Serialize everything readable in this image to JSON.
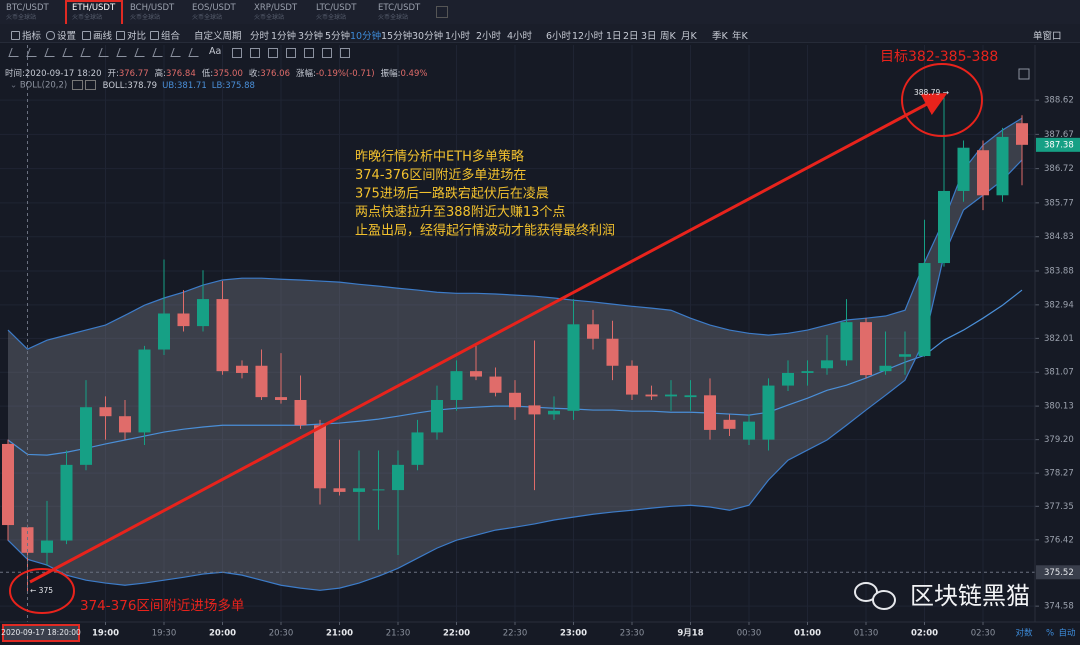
{
  "tabs": [
    {
      "pair": "BTC/USDT",
      "exchange": "火币全球站"
    },
    {
      "pair": "ETH/USDT",
      "exchange": "火币全球站"
    },
    {
      "pair": "BCH/USDT",
      "exchange": "火币全球站"
    },
    {
      "pair": "EOS/USDT",
      "exchange": "火币全球站"
    },
    {
      "pair": "XRP/USDT",
      "exchange": "火币全球站"
    },
    {
      "pair": "LTC/USDT",
      "exchange": "火币全球站"
    },
    {
      "pair": "ETC/USDT",
      "exchange": "火币全球站"
    }
  ],
  "toolbar": {
    "left": [
      "指标",
      "设置",
      "画线",
      "对比",
      "组合"
    ],
    "custom": "自定义周期",
    "periods": [
      "分时",
      "1分钟",
      "3分钟",
      "5分钟",
      "10分钟",
      "15分钟",
      "30分钟",
      "1小时",
      "2小时",
      "4小时",
      "6小时",
      "12小时",
      "1日",
      "2日",
      "3日",
      "周K",
      "月K",
      "季K",
      "年K"
    ],
    "window": "单窗口"
  },
  "draw_tools_text": "Aa",
  "info": [
    {
      "label": "时间:",
      "value": "2020-09-17 18:20"
    },
    {
      "label": "开:",
      "value": "376.77"
    },
    {
      "label": "高:",
      "value": "376.84"
    },
    {
      "label": "低:",
      "value": "375.00"
    },
    {
      "label": "收:",
      "value": "376.06"
    },
    {
      "label": "涨幅:",
      "value": "-0.19%(-0.71)"
    },
    {
      "label": "振幅:",
      "value": "0.49%"
    }
  ],
  "indicator": {
    "title": "BOLL(20,2)",
    "readout": [
      "BOLL:378.79",
      "UB:381.71",
      "LB:375.88"
    ]
  },
  "annotations": {
    "target": "目标382-385-388",
    "high_marker": "388.79 →",
    "low_marker": "← 375",
    "entry_note": "374-376区间附近进场多单",
    "commentary": [
      "昨晚行情分析中ETH多单策略",
      "374-376区间附近多单进场在",
      "375进场后一路跌宕起伏后在凌晨",
      "两点快速拉升至388附近大赚13个点",
      "止盈出局，经得起行情波动才能获得最终利润"
    ]
  },
  "watermark": "区块链黑猫",
  "axis_footer": [
    "对数",
    "%",
    "自动"
  ],
  "chart_data": {
    "type": "candlestick",
    "grid": true,
    "categories": [
      null,
      null,
      null,
      null,
      null,
      "19:00",
      null,
      null,
      "19:30",
      null,
      null,
      "20:00",
      null,
      null,
      "20:30",
      null,
      null,
      "21:00",
      null,
      null,
      "21:30",
      null,
      null,
      "22:00",
      null,
      null,
      "22:30",
      null,
      null,
      "23:00",
      null,
      null,
      "23:30",
      null,
      null,
      "9月18",
      null,
      null,
      "00:30",
      null,
      null,
      "01:00",
      null,
      null,
      "01:30",
      null,
      null,
      "02:00",
      null,
      null,
      "02:30",
      null,
      null
    ],
    "open": [
      379.08,
      376.77,
      376.06,
      376.4,
      378.5,
      380.1,
      379.85,
      379.4,
      381.7,
      382.7,
      382.35,
      383.1,
      381.25,
      381.25,
      380.38,
      380.3,
      379.6,
      377.85,
      377.75,
      377.8,
      377.8,
      378.5,
      379.4,
      380.3,
      381.1,
      380.95,
      380.5,
      380.15,
      379.9,
      380.0,
      382.4,
      382.0,
      381.25,
      380.45,
      380.4,
      380.38,
      380.43,
      379.75,
      379.2,
      379.2,
      380.7,
      381.05,
      381.18,
      381.4,
      382.46,
      381.1,
      381.5,
      381.52,
      384.1,
      386.1,
      387.23,
      385.98,
      387.98
    ],
    "high": [
      379.2,
      376.84,
      377.5,
      378.9,
      380.85,
      380.4,
      380.3,
      381.8,
      384.2,
      383.35,
      383.9,
      383.6,
      381.4,
      381.7,
      381.6,
      380.98,
      379.75,
      379.2,
      378.9,
      378.9,
      378.9,
      379.75,
      380.7,
      381.4,
      381.8,
      381.2,
      380.85,
      381.95,
      380.4,
      383.1,
      382.8,
      382.5,
      381.4,
      380.7,
      380.85,
      380.85,
      380.9,
      379.9,
      379.9,
      380.9,
      381.4,
      381.4,
      382.1,
      383.1,
      382.57,
      382.2,
      382.2,
      385.3,
      388.79,
      387.5,
      387.5,
      387.85,
      388.2
    ],
    "low": [
      376.4,
      375.0,
      375.7,
      376.3,
      378.35,
      379.2,
      379.2,
      379.05,
      381.55,
      382.2,
      382.2,
      381.0,
      380.9,
      380.3,
      380.2,
      379.5,
      377.4,
      377.65,
      376.4,
      376.7,
      376.0,
      378.35,
      379.2,
      380.0,
      380.85,
      380.4,
      379.75,
      377.8,
      379.75,
      379.75,
      381.7,
      380.85,
      380.3,
      380.3,
      380.0,
      380.0,
      379.2,
      379.3,
      379.05,
      378.9,
      380.55,
      380.7,
      381.0,
      381.25,
      380.9,
      381.0,
      381.0,
      381.5,
      384.0,
      385.8,
      385.57,
      385.8,
      386.26
    ],
    "close": [
      376.83,
      376.06,
      376.4,
      378.5,
      380.1,
      379.85,
      379.4,
      381.7,
      382.7,
      382.35,
      383.1,
      381.1,
      381.05,
      380.38,
      380.3,
      379.6,
      377.85,
      377.75,
      377.85,
      377.82,
      378.5,
      379.4,
      380.3,
      381.1,
      380.95,
      380.5,
      380.1,
      379.9,
      380.0,
      382.4,
      382.0,
      381.25,
      380.45,
      380.4,
      380.45,
      380.43,
      379.47,
      379.5,
      379.7,
      380.7,
      381.05,
      381.1,
      381.4,
      382.46,
      380.99,
      381.25,
      381.57,
      384.1,
      386.1,
      387.3,
      385.98,
      387.6,
      387.38
    ],
    "up_color": "#16a085",
    "down_color": "#e06c6a",
    "band_fill": "rgba(120,124,136,0.38)",
    "series": [
      {
        "color": "#4a8fd8",
        "values": [
          379.19,
          378.79,
          378.77,
          378.85,
          378.96,
          379.08,
          379.19,
          379.3,
          379.41,
          379.49,
          379.55,
          379.6,
          379.6,
          379.6,
          379.6,
          379.6,
          379.63,
          379.66,
          379.71,
          379.77,
          379.85,
          379.94,
          380.02,
          380.07,
          380.1,
          380.13,
          380.13,
          380.1,
          380.07,
          380.05,
          380.02,
          380.02,
          379.99,
          379.99,
          379.96,
          379.96,
          379.94,
          379.91,
          379.88,
          379.96,
          380.16,
          380.35,
          380.57,
          380.71,
          380.91,
          381.13,
          381.35,
          381.54,
          381.96,
          382.24,
          382.57,
          382.93,
          383.35
        ]
      },
      {
        "color": "#3d7cc9",
        "values": [
          382.24,
          381.71,
          381.96,
          382.1,
          382.24,
          382.38,
          382.65,
          382.93,
          383.13,
          383.29,
          383.49,
          383.63,
          383.68,
          383.68,
          383.65,
          383.63,
          383.6,
          383.57,
          383.51,
          383.46,
          383.4,
          383.35,
          383.29,
          383.26,
          383.26,
          383.24,
          383.21,
          383.18,
          383.13,
          383.07,
          383.02,
          382.96,
          382.9,
          382.85,
          382.79,
          382.57,
          382.38,
          382.24,
          382.15,
          382.1,
          382.15,
          382.24,
          382.38,
          382.52,
          382.57,
          382.63,
          382.79,
          384.12,
          385.29,
          386.68,
          387.37,
          387.79,
          388.12
        ]
      },
      {
        "color": "#3d7cc9",
        "values": [
          376.41,
          375.88,
          375.72,
          375.44,
          375.3,
          375.22,
          375.16,
          375.22,
          375.3,
          375.38,
          375.47,
          375.52,
          375.44,
          375.3,
          375.16,
          375.08,
          375.02,
          375.08,
          375.22,
          375.41,
          375.63,
          375.91,
          376.19,
          376.41,
          376.55,
          376.69,
          376.77,
          376.86,
          376.97,
          377.05,
          377.13,
          377.19,
          377.24,
          377.3,
          377.35,
          377.38,
          377.33,
          377.24,
          377.38,
          378.08,
          378.63,
          378.91,
          379.19,
          379.6,
          380.02,
          380.43,
          380.85,
          381.96,
          384.32,
          385.57,
          385.98,
          386.4,
          386.96
        ]
      }
    ],
    "ylim": [
      374.14,
      390.15
    ],
    "yticks": [
      388.62,
      387.67,
      386.72,
      385.77,
      384.83,
      383.88,
      382.94,
      382.01,
      381.07,
      380.13,
      {
        "value": 379.2,
        "label": "379.20"
      },
      378.27,
      377.35,
      376.42,
      374.58
    ],
    "last_price": 387.38,
    "crosshair": {
      "time_label": "2020-09-17 18:20:00",
      "price": 375.52
    }
  }
}
